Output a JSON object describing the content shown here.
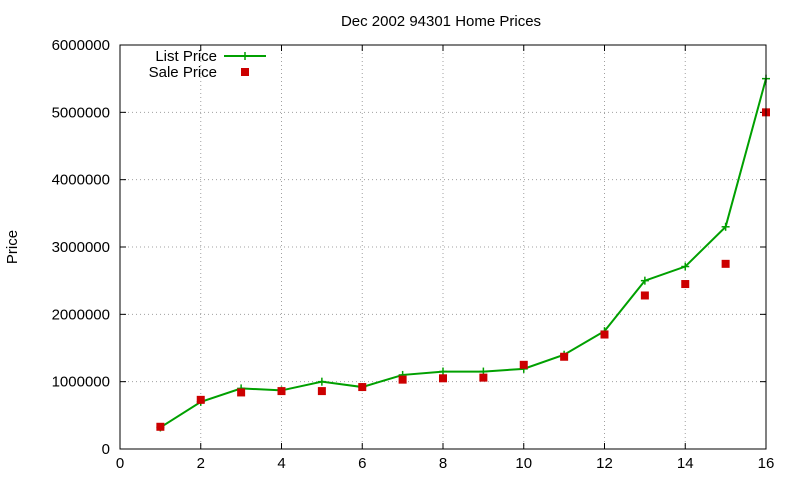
{
  "chart_data": {
    "type": "line",
    "title": "Dec 2002 94301 Home Prices",
    "xlabel": "",
    "ylabel": "Price",
    "xlim": [
      0,
      16
    ],
    "ylim": [
      0,
      6000000
    ],
    "x_ticks": [
      "0",
      "2",
      "4",
      "6",
      "8",
      "10",
      "12",
      "14",
      "16"
    ],
    "y_ticks": [
      "0",
      "1000000",
      "2000000",
      "3000000",
      "4000000",
      "5000000",
      "6000000"
    ],
    "grid": true,
    "legend_position": "top-left",
    "series": [
      {
        "name": "List Price",
        "style": "line-with-plus-markers",
        "color": "#00a000",
        "x": [
          1,
          2,
          3,
          4,
          5,
          6,
          7,
          8,
          9,
          10,
          11,
          12,
          13,
          14,
          15,
          16
        ],
        "values": [
          320000,
          700000,
          900000,
          870000,
          1000000,
          920000,
          1100000,
          1150000,
          1150000,
          1190000,
          1400000,
          1750000,
          2500000,
          2710000,
          3300000,
          5500000
        ]
      },
      {
        "name": "Sale Price",
        "style": "square-markers",
        "color": "#cc0000",
        "x": [
          1,
          2,
          3,
          4,
          5,
          6,
          7,
          8,
          9,
          10,
          11,
          12,
          13,
          14,
          15,
          16
        ],
        "values": [
          330000,
          730000,
          840000,
          860000,
          860000,
          920000,
          1030000,
          1050000,
          1060000,
          1250000,
          1370000,
          1700000,
          2280000,
          2450000,
          2750000,
          5000000
        ]
      }
    ]
  }
}
